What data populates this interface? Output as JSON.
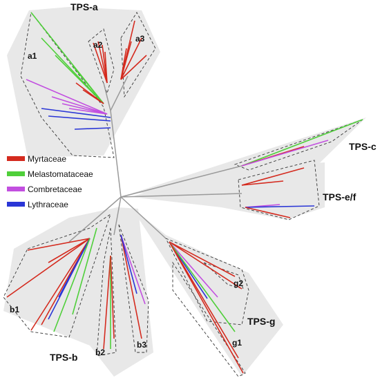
{
  "clades": {
    "tps_a": "TPS-a",
    "tps_b": "TPS-b",
    "tps_c": "TPS-c",
    "tps_ef": "TPS-e/f",
    "tps_g": "TPS-g"
  },
  "subclades": {
    "a1": "a1",
    "a2": "a2",
    "a3": "a3",
    "b1": "b1",
    "b2": "b2",
    "b3": "b3",
    "g1": "g1",
    "g2": "g2"
  },
  "legend": [
    {
      "label": "Myrtaceae",
      "color": "#d42a1e"
    },
    {
      "label": "Melastomataceae",
      "color": "#4fcf3a"
    },
    {
      "label": "Combretaceae",
      "color": "#c24fe0"
    },
    {
      "label": "Lythraceae",
      "color": "#2a36d6"
    }
  ],
  "colors": {
    "myrtaceae": "#d42a1e",
    "melastomataceae": "#4fcf3a",
    "combretaceae": "#c24fe0",
    "lythraceae": "#2a36d6",
    "backbone": "#9a9a9a",
    "shade": "#e6e6e6"
  }
}
